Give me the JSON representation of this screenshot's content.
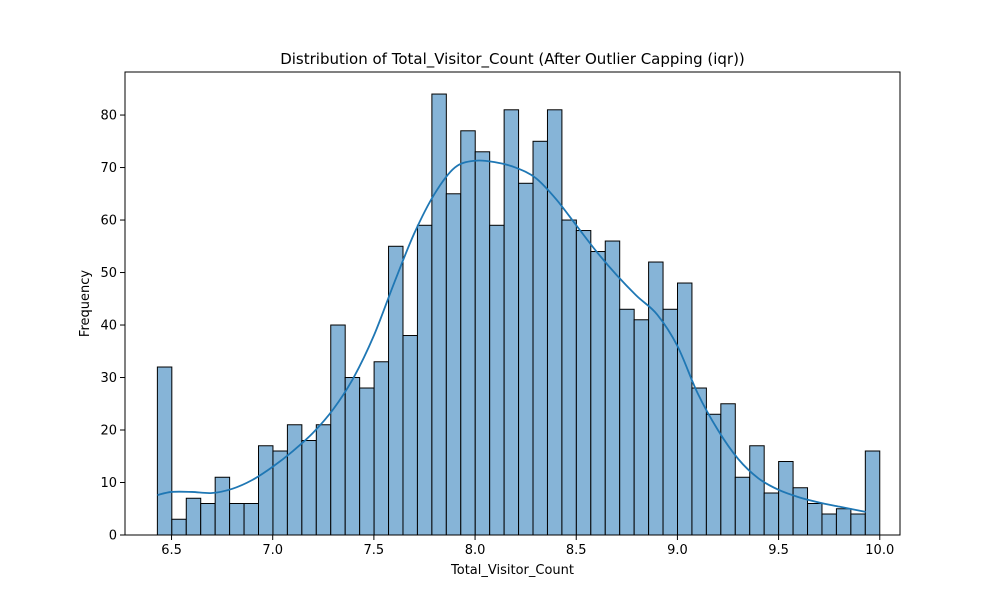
{
  "chart_data": {
    "type": "bar",
    "title": "Distribution of Total_Visitor_Count (After Outlier Capping (iqr))",
    "xlabel": "Total_Visitor_Count",
    "ylabel": "Frequency",
    "xlim": [
      6.27,
      10.1
    ],
    "ylim": [
      0,
      88.2
    ],
    "bin_start": 6.43,
    "bin_width": 0.0714,
    "values": [
      32,
      3,
      7,
      6,
      11,
      6,
      6,
      17,
      16,
      21,
      18,
      21,
      40,
      30,
      28,
      33,
      55,
      38,
      59,
      84,
      65,
      77,
      73,
      59,
      81,
      67,
      75,
      81,
      60,
      58,
      54,
      56,
      43,
      41,
      52,
      43,
      48,
      28,
      23,
      25,
      11,
      17,
      8,
      14,
      9,
      6,
      4,
      5,
      4,
      16
    ],
    "xticks": [
      6.5,
      7.0,
      7.5,
      8.0,
      8.5,
      9.0,
      9.5,
      10.0
    ],
    "xtick_labels": [
      "6.5",
      "7.0",
      "7.5",
      "8.0",
      "8.5",
      "9.0",
      "9.5",
      "10.0"
    ],
    "yticks": [
      0,
      10,
      20,
      30,
      40,
      50,
      60,
      70,
      80
    ],
    "ytick_labels": [
      "0",
      "10",
      "20",
      "30",
      "40",
      "50",
      "60",
      "70",
      "80"
    ],
    "kde": {
      "x": [
        6.43,
        6.5,
        6.6,
        6.7,
        6.8,
        6.9,
        7.0,
        7.1,
        7.2,
        7.3,
        7.4,
        7.5,
        7.6,
        7.7,
        7.8,
        7.9,
        8.0,
        8.1,
        8.2,
        8.3,
        8.4,
        8.5,
        8.6,
        8.7,
        8.8,
        8.9,
        9.0,
        9.1,
        9.2,
        9.3,
        9.4,
        9.5,
        9.6,
        9.7,
        9.8,
        9.93
      ],
      "y": [
        7.6,
        8.2,
        8.2,
        8.0,
        8.8,
        10.5,
        13.0,
        16.0,
        19.5,
        24.0,
        30.0,
        38.0,
        48.0,
        57.5,
        65.0,
        70.0,
        71.3,
        71.0,
        70.0,
        68.0,
        64.0,
        59.0,
        54.0,
        49.5,
        45.5,
        42.0,
        36.0,
        27.0,
        20.0,
        14.5,
        10.8,
        8.6,
        7.2,
        6.2,
        5.4,
        4.4
      ]
    },
    "grid": false,
    "legend": "none",
    "colors": {
      "bar_fill": "#86b4d7",
      "bar_edge": "#000000",
      "kde_line": "#1f77b4"
    }
  }
}
